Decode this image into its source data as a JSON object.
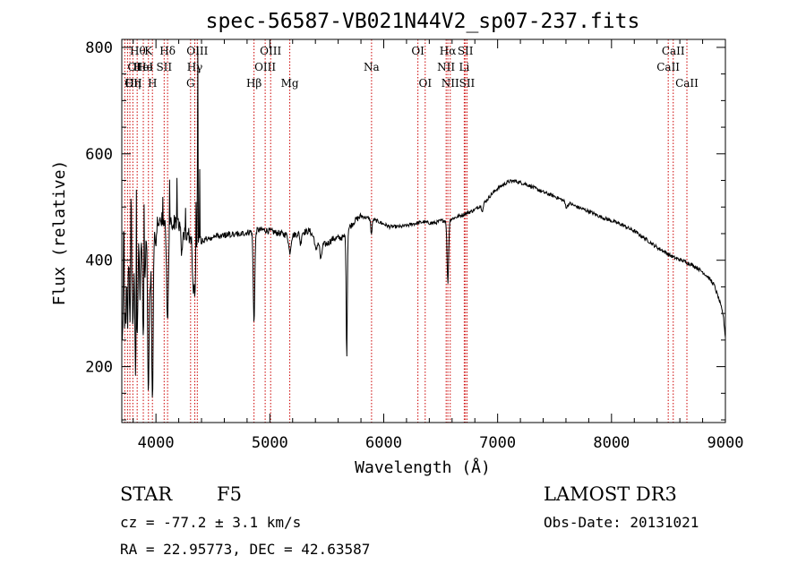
{
  "chart_data": {
    "type": "line",
    "title": "spec-56587-VB021N44V2_sp07-237.fits",
    "xlabel": "Wavelength (Å)",
    "ylabel": "Flux (relative)",
    "xlim": [
      3700,
      9000
    ],
    "ylim": [
      95,
      815
    ],
    "x_ticks": [
      4000,
      5000,
      6000,
      7000,
      8000,
      9000
    ],
    "y_ticks": [
      200,
      400,
      600,
      800
    ],
    "grid": false,
    "continuum": [
      [
        3700,
        330
      ],
      [
        3720,
        380
      ],
      [
        3760,
        400
      ],
      [
        3800,
        410
      ],
      [
        3850,
        440
      ],
      [
        3900,
        455
      ],
      [
        3950,
        462
      ],
      [
        4000,
        468
      ],
      [
        4050,
        475
      ],
      [
        4100,
        482
      ],
      [
        4150,
        472
      ],
      [
        4200,
        462
      ],
      [
        4250,
        452
      ],
      [
        4300,
        446
      ],
      [
        4350,
        440
      ],
      [
        4400,
        436
      ],
      [
        4450,
        440
      ],
      [
        4500,
        444
      ],
      [
        4550,
        446
      ],
      [
        4600,
        447
      ],
      [
        4650,
        449
      ],
      [
        4700,
        449
      ],
      [
        4750,
        450
      ],
      [
        4800,
        452
      ],
      [
        4850,
        455
      ],
      [
        4900,
        457
      ],
      [
        4950,
        457
      ],
      [
        5000,
        455
      ],
      [
        5050,
        452
      ],
      [
        5100,
        450
      ],
      [
        5150,
        448
      ],
      [
        5200,
        447
      ],
      [
        5250,
        450
      ],
      [
        5300,
        453
      ],
      [
        5350,
        455
      ],
      [
        5400,
        438
      ],
      [
        5450,
        430
      ],
      [
        5500,
        430
      ],
      [
        5550,
        440
      ],
      [
        5600,
        442
      ],
      [
        5650,
        443
      ],
      [
        5700,
        462
      ],
      [
        5750,
        475
      ],
      [
        5800,
        483
      ],
      [
        5850,
        480
      ],
      [
        5900,
        477
      ],
      [
        5950,
        473
      ],
      [
        6000,
        468
      ],
      [
        6050,
        463
      ],
      [
        6100,
        463
      ],
      [
        6150,
        463
      ],
      [
        6200,
        465
      ],
      [
        6250,
        468
      ],
      [
        6300,
        470
      ],
      [
        6350,
        472
      ],
      [
        6400,
        470
      ],
      [
        6450,
        470
      ],
      [
        6500,
        474
      ],
      [
        6550,
        475
      ],
      [
        6600,
        478
      ],
      [
        6650,
        482
      ],
      [
        6700,
        486
      ],
      [
        6750,
        490
      ],
      [
        6800,
        495
      ],
      [
        6850,
        503
      ],
      [
        6900,
        512
      ],
      [
        6950,
        525
      ],
      [
        7000,
        535
      ],
      [
        7050,
        542
      ],
      [
        7100,
        548
      ],
      [
        7150,
        549
      ],
      [
        7200,
        546
      ],
      [
        7250,
        543
      ],
      [
        7300,
        538
      ],
      [
        7350,
        533
      ],
      [
        7400,
        528
      ],
      [
        7450,
        524
      ],
      [
        7500,
        520
      ],
      [
        7550,
        515
      ],
      [
        7600,
        510
      ],
      [
        7650,
        505
      ],
      [
        7700,
        500
      ],
      [
        7750,
        496
      ],
      [
        7800,
        492
      ],
      [
        7850,
        487
      ],
      [
        7900,
        482
      ],
      [
        7950,
        478
      ],
      [
        8000,
        474
      ],
      [
        8050,
        470
      ],
      [
        8100,
        466
      ],
      [
        8150,
        460
      ],
      [
        8200,
        455
      ],
      [
        8250,
        447
      ],
      [
        8300,
        440
      ],
      [
        8350,
        432
      ],
      [
        8400,
        424
      ],
      [
        8450,
        418
      ],
      [
        8500,
        411
      ],
      [
        8550,
        405
      ],
      [
        8600,
        401
      ],
      [
        8650,
        397
      ],
      [
        8700,
        392
      ],
      [
        8750,
        386
      ],
      [
        8800,
        378
      ],
      [
        8850,
        368
      ],
      [
        8900,
        354
      ],
      [
        8950,
        322
      ],
      [
        8980,
        298
      ],
      [
        9000,
        255
      ]
    ],
    "absorption": [
      {
        "center": 3705,
        "depth": 95,
        "width": 4
      },
      {
        "center": 3725,
        "depth": 120,
        "width": 4
      },
      {
        "center": 3735,
        "depth": 100,
        "width": 3
      },
      {
        "center": 3750,
        "depth": 125,
        "width": 4
      },
      {
        "center": 3771,
        "depth": 110,
        "width": 4
      },
      {
        "center": 3798,
        "depth": 140,
        "width": 5
      },
      {
        "center": 3820,
        "depth": 225,
        "width": 5
      },
      {
        "center": 3835,
        "depth": 180,
        "width": 6
      },
      {
        "center": 3860,
        "depth": 120,
        "width": 4
      },
      {
        "center": 3889,
        "depth": 210,
        "width": 6
      },
      {
        "center": 3905,
        "depth": 90,
        "width": 4
      },
      {
        "center": 3934,
        "depth": 315,
        "width": 7
      },
      {
        "center": 3950,
        "depth": 80,
        "width": 4
      },
      {
        "center": 3969,
        "depth": 325,
        "width": 7
      },
      {
        "center": 4000,
        "depth": 45,
        "width": 5
      },
      {
        "center": 4101,
        "depth": 195,
        "width": 8
      },
      {
        "center": 4227,
        "depth": 40,
        "width": 6
      },
      {
        "center": 4325,
        "depth": 70,
        "width": 6
      },
      {
        "center": 4340,
        "depth": 95,
        "width": 8
      },
      {
        "center": 4861,
        "depth": 170,
        "width": 7
      },
      {
        "center": 5175,
        "depth": 32,
        "width": 10
      },
      {
        "center": 5270,
        "depth": 22,
        "width": 6
      },
      {
        "center": 5405,
        "depth": 20,
        "width": 8
      },
      {
        "center": 5448,
        "depth": 30,
        "width": 8
      },
      {
        "center": 5675,
        "depth": 232,
        "width": 5
      },
      {
        "center": 5892,
        "depth": 28,
        "width": 6
      },
      {
        "center": 6563,
        "depth": 118,
        "width": 7
      },
      {
        "center": 6867,
        "depth": 12,
        "width": 8
      },
      {
        "center": 7605,
        "depth": 10,
        "width": 10
      }
    ],
    "spikes": [
      {
        "x": 3718,
        "value": 445
      },
      {
        "x": 3782,
        "value": 510
      },
      {
        "x": 3828,
        "value": 520
      },
      {
        "x": 3896,
        "value": 515
      },
      {
        "x": 4060,
        "value": 525
      },
      {
        "x": 4120,
        "value": 548
      },
      {
        "x": 4185,
        "value": 545
      },
      {
        "x": 4260,
        "value": 505
      },
      {
        "x": 4352,
        "value": 495
      },
      {
        "x": 4365,
        "value": 555
      },
      {
        "x": 4368,
        "value": 805
      },
      {
        "x": 4383,
        "value": 560
      }
    ],
    "lines": [
      {
        "wavelength": 3726,
        "label": "OII",
        "row": 2,
        "align": "start"
      },
      {
        "wavelength": 3750,
        "label": "OI",
        "row": 1,
        "align": "start"
      },
      {
        "wavelength": 3771,
        "label": "Hθ",
        "row": 0,
        "align": "start"
      },
      {
        "wavelength": 3797,
        "label": "Hη",
        "row": 2,
        "align": "middle"
      },
      {
        "wavelength": 3835,
        "label": "He",
        "row": 1,
        "align": "start"
      },
      {
        "wavelength": 3889,
        "label": "HeI",
        "row": 1,
        "align": "middle"
      },
      {
        "wavelength": 3934,
        "label": "K",
        "row": 0,
        "align": "middle"
      },
      {
        "wavelength": 3969,
        "label": "H",
        "row": 2,
        "align": "middle"
      },
      {
        "wavelength": 4072,
        "label": "SII",
        "row": 1,
        "align": "middle"
      },
      {
        "wavelength": 4102,
        "label": "Hδ",
        "row": 0,
        "align": "middle"
      },
      {
        "wavelength": 4304,
        "label": "G",
        "row": 2,
        "align": "middle"
      },
      {
        "wavelength": 4341,
        "label": "Hγ",
        "row": 1,
        "align": "middle"
      },
      {
        "wavelength": 4363,
        "label": "OIII",
        "row": 0,
        "align": "middle"
      },
      {
        "wavelength": 4861,
        "label": "Hβ",
        "row": 2,
        "align": "middle"
      },
      {
        "wavelength": 4959,
        "label": "OIII",
        "row": 1,
        "align": "middle"
      },
      {
        "wavelength": 5007,
        "label": "OIII",
        "row": 0,
        "align": "middle"
      },
      {
        "wavelength": 5175,
        "label": "Mg",
        "row": 2,
        "align": "middle"
      },
      {
        "wavelength": 5893,
        "label": "Na",
        "row": 1,
        "align": "middle"
      },
      {
        "wavelength": 6300,
        "label": "OI",
        "row": 0,
        "align": "middle"
      },
      {
        "wavelength": 6364,
        "label": "OI",
        "row": 2,
        "align": "middle"
      },
      {
        "wavelength": 6548,
        "label": "NII",
        "row": 1,
        "align": "middle"
      },
      {
        "wavelength": 6563,
        "label": "Hα",
        "row": 0,
        "align": "middle"
      },
      {
        "wavelength": 6584,
        "label": "NII",
        "row": 2,
        "align": "middle"
      },
      {
        "wavelength": 6707,
        "label": "Li",
        "row": 1,
        "align": "middle"
      },
      {
        "wavelength": 6717,
        "label": "SII",
        "row": 0,
        "align": "middle"
      },
      {
        "wavelength": 6731,
        "label": "SII",
        "row": 2,
        "align": "middle"
      },
      {
        "wavelength": 8498,
        "label": "CaII",
        "row": 1,
        "align": "middle"
      },
      {
        "wavelength": 8542,
        "label": "CaII",
        "row": 0,
        "align": "middle"
      },
      {
        "wavelength": 8662,
        "label": "CaII",
        "row": 2,
        "align": "middle"
      }
    ],
    "line_color": "#000000",
    "marker_color": "#cc0000"
  },
  "info": {
    "class_label": "STAR",
    "subclass": "F5",
    "survey": "LAMOST DR3",
    "velocity": "cz = -77.2 ± 3.1 km/s",
    "obs_date": "Obs-Date: 20131021",
    "coords": "RA =  22.95773, DEC =  42.63587"
  }
}
